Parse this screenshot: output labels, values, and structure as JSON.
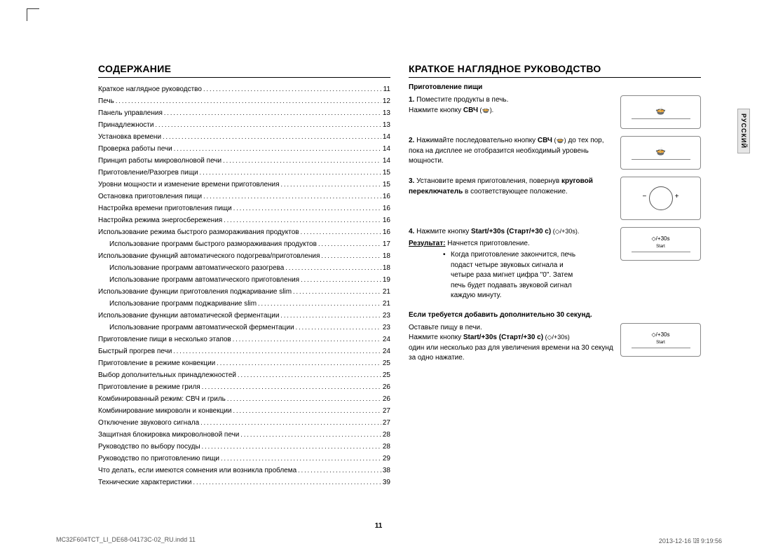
{
  "lang_tab": "РУССКИЙ",
  "page_number": "11",
  "footer": {
    "left": "MC32F604TCT_LI_DE68-04173C-02_RU.indd   11",
    "right": "2013-12-16   ㏫ 9:19:56"
  },
  "left": {
    "heading": "СОДЕРЖАНИЕ",
    "items": [
      {
        "label": "Краткое наглядное руководство",
        "page": "11",
        "indent": 0
      },
      {
        "label": "Печь",
        "page": "12",
        "indent": 0
      },
      {
        "label": "Панель управления",
        "page": "13",
        "indent": 0
      },
      {
        "label": "Принадлежности",
        "page": "13",
        "indent": 0
      },
      {
        "label": "Установка времени",
        "page": "14",
        "indent": 0
      },
      {
        "label": "Проверка работы печи",
        "page": "14",
        "indent": 0
      },
      {
        "label": "Принцип работы микроволновой печи",
        "page": "14",
        "indent": 0
      },
      {
        "label": "Приготовление/Разогрев пищи",
        "page": "15",
        "indent": 0
      },
      {
        "label": "Уровни мощности и изменение времени приготовления",
        "page": "15",
        "indent": 0
      },
      {
        "label": "Остановка приготовления пищи",
        "page": "16",
        "indent": 0
      },
      {
        "label": "Настройка времени приготовления пищи",
        "page": "16",
        "indent": 0
      },
      {
        "label": "Настройка режима энергосбережения",
        "page": "16",
        "indent": 0
      },
      {
        "label": "Использование режима быстрого размораживания продуктов",
        "page": "16",
        "indent": 0
      },
      {
        "label": "Использование программ быстрого размораживания продуктов",
        "page": "17",
        "indent": 1
      },
      {
        "label": "Использование функций автоматического подогрева/приготовления",
        "page": "18",
        "indent": 0
      },
      {
        "label": "Использование программ автоматического разогрева",
        "page": "18",
        "indent": 1
      },
      {
        "label": "Использование программ автоматического приготовления",
        "page": "19",
        "indent": 1
      },
      {
        "label": "Использование функции приготовления поджаривание slim",
        "page": "21",
        "indent": 0
      },
      {
        "label": "Использование программ поджаривание slim",
        "page": "21",
        "indent": 1
      },
      {
        "label": "Использование функции автоматической ферментации",
        "page": "23",
        "indent": 0
      },
      {
        "label": "Использование программ автоматической ферментации",
        "page": "23",
        "indent": 1
      },
      {
        "label": "Приготовление пищи в несколько этапов",
        "page": "24",
        "indent": 0
      },
      {
        "label": "Быстрый прогрев печи",
        "page": "24",
        "indent": 0
      },
      {
        "label": "Приготовление в режиме конвекции",
        "page": "25",
        "indent": 0
      },
      {
        "label": "Выбор дополнительных принадлежностей",
        "page": "25",
        "indent": 0
      },
      {
        "label": "Приготовление в режиме гриля",
        "page": "26",
        "indent": 0
      },
      {
        "label": "Комбинированный режим: СВЧ и гриль",
        "page": "26",
        "indent": 0
      },
      {
        "label": "Комбинирование микроволн и конвекции",
        "page": "27",
        "indent": 0
      },
      {
        "label": "Отключение звукового сигнала",
        "page": "27",
        "indent": 0
      },
      {
        "label": "Защитная блокировка микроволновой печи",
        "page": "28",
        "indent": 0
      },
      {
        "label": "Руководство по выбору посуды",
        "page": "28",
        "indent": 0
      },
      {
        "label": "Руководство по приготовлению пищи",
        "page": "29",
        "indent": 0
      },
      {
        "label": "Что делать, если имеются сомнения или возникла проблема",
        "page": "38",
        "indent": 0
      },
      {
        "label": "Технические характеристики",
        "page": "39",
        "indent": 0
      }
    ]
  },
  "right": {
    "heading": "КРАТКОЕ НАГЛЯДНОЕ РУКОВОДСТВО",
    "sub1": "Приготовление пищи",
    "step1_num": "1.",
    "step1_a": "Поместите продукты в печь.",
    "step1_b_pre": "Нажмите кнопку ",
    "step1_b_bold": "СВЧ",
    "step1_b_icon": " (🍲).",
    "step2_num": "2.",
    "step2_a_pre": "Нажимайте последовательно кнопку ",
    "step2_a_bold": "СВЧ",
    "step2_a_icon": " (🍲)",
    "step2_b": "до тех пор, пока на дисплее не отобразится необходимый уровень мощности.",
    "step3_num": "3.",
    "step3_a": "Установите время приготовления, повернув",
    "step3_bold": "круговой переключатель",
    "step3_c": " в соответствующее положение.",
    "step4_num": "4.",
    "step4_a_pre": "Нажмите кнопку ",
    "step4_a_bold": "Start/+30s (Старт/+30 с)",
    "step4_a_icon": " (◇/+30s).",
    "result_label": "Результат:",
    "result_text": " Начнется приготовление.",
    "bullet": "Когда приготовление закончится, печь подаст четыре звуковых сигнала и четыре раза мигнет цифра \"0\". Затем печь будет подавать звуковой сигнал каждую минуту.",
    "sub2": "Если требуется добавить дополнительно 30 секунд.",
    "p1": "Оставьте пищу в печи.",
    "p2_pre": "Нажмите кнопку ",
    "p2_bold": "Start/+30s (Старт/+30 с)",
    "p2_icon": " (◇/+30s)",
    "p3": "один или несколько раз для увеличения времени на 30 секунд за одно нажатие.",
    "icon_mw": "🍲",
    "icon_start_text": "◇/+30s",
    "icon_start_sub": "Start"
  }
}
